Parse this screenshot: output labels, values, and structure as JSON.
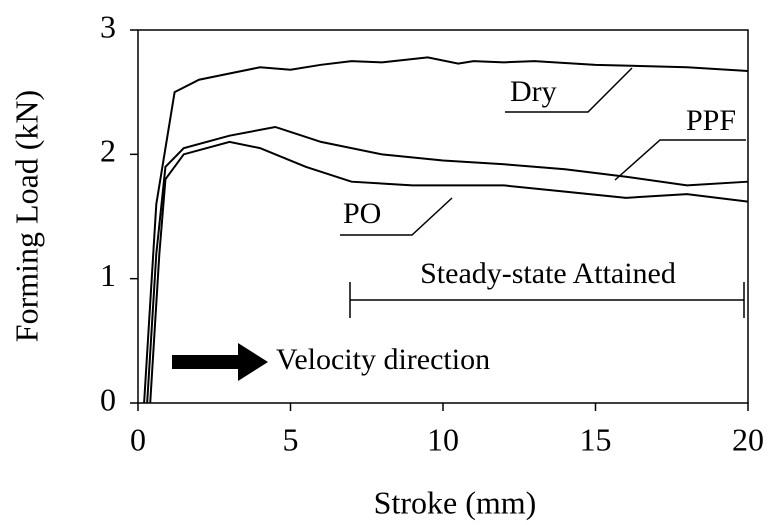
{
  "chart_data": {
    "type": "line",
    "xlabel": "Stroke (mm)",
    "ylabel": "Forming Load (kN)",
    "xlim": [
      0,
      20
    ],
    "ylim": [
      0,
      3
    ],
    "xticks": [
      0,
      5,
      10,
      15,
      20
    ],
    "yticks": [
      0,
      1,
      2,
      3
    ],
    "grid": false,
    "series": [
      {
        "name": "Dry",
        "color": "#000000",
        "x": [
          0.2,
          0.6,
          1.2,
          2,
          3,
          4,
          5,
          6,
          7,
          8,
          9.5,
          10.5,
          11,
          12,
          13,
          15,
          18,
          20
        ],
        "values": [
          0,
          1.6,
          2.5,
          2.6,
          2.65,
          2.7,
          2.68,
          2.72,
          2.75,
          2.74,
          2.78,
          2.73,
          2.75,
          2.74,
          2.75,
          2.72,
          2.7,
          2.67
        ]
      },
      {
        "name": "PPF",
        "color": "#000000",
        "x": [
          0.3,
          0.6,
          0.9,
          1.5,
          3,
          4.5,
          6,
          8,
          10,
          12,
          14,
          16,
          18,
          20
        ],
        "values": [
          0,
          1.2,
          1.9,
          2.05,
          2.15,
          2.22,
          2.1,
          2.0,
          1.95,
          1.92,
          1.88,
          1.82,
          1.75,
          1.78
        ]
      },
      {
        "name": "PO",
        "color": "#000000",
        "x": [
          0.4,
          0.7,
          0.9,
          1.5,
          3,
          4,
          5.5,
          7,
          9,
          12,
          14,
          16,
          18,
          20
        ],
        "values": [
          0,
          1.2,
          1.8,
          2.0,
          2.1,
          2.05,
          1.9,
          1.78,
          1.75,
          1.75,
          1.7,
          1.65,
          1.68,
          1.62
        ]
      }
    ],
    "annotations": [
      "Steady-state Attained",
      "Velocity direction"
    ]
  }
}
